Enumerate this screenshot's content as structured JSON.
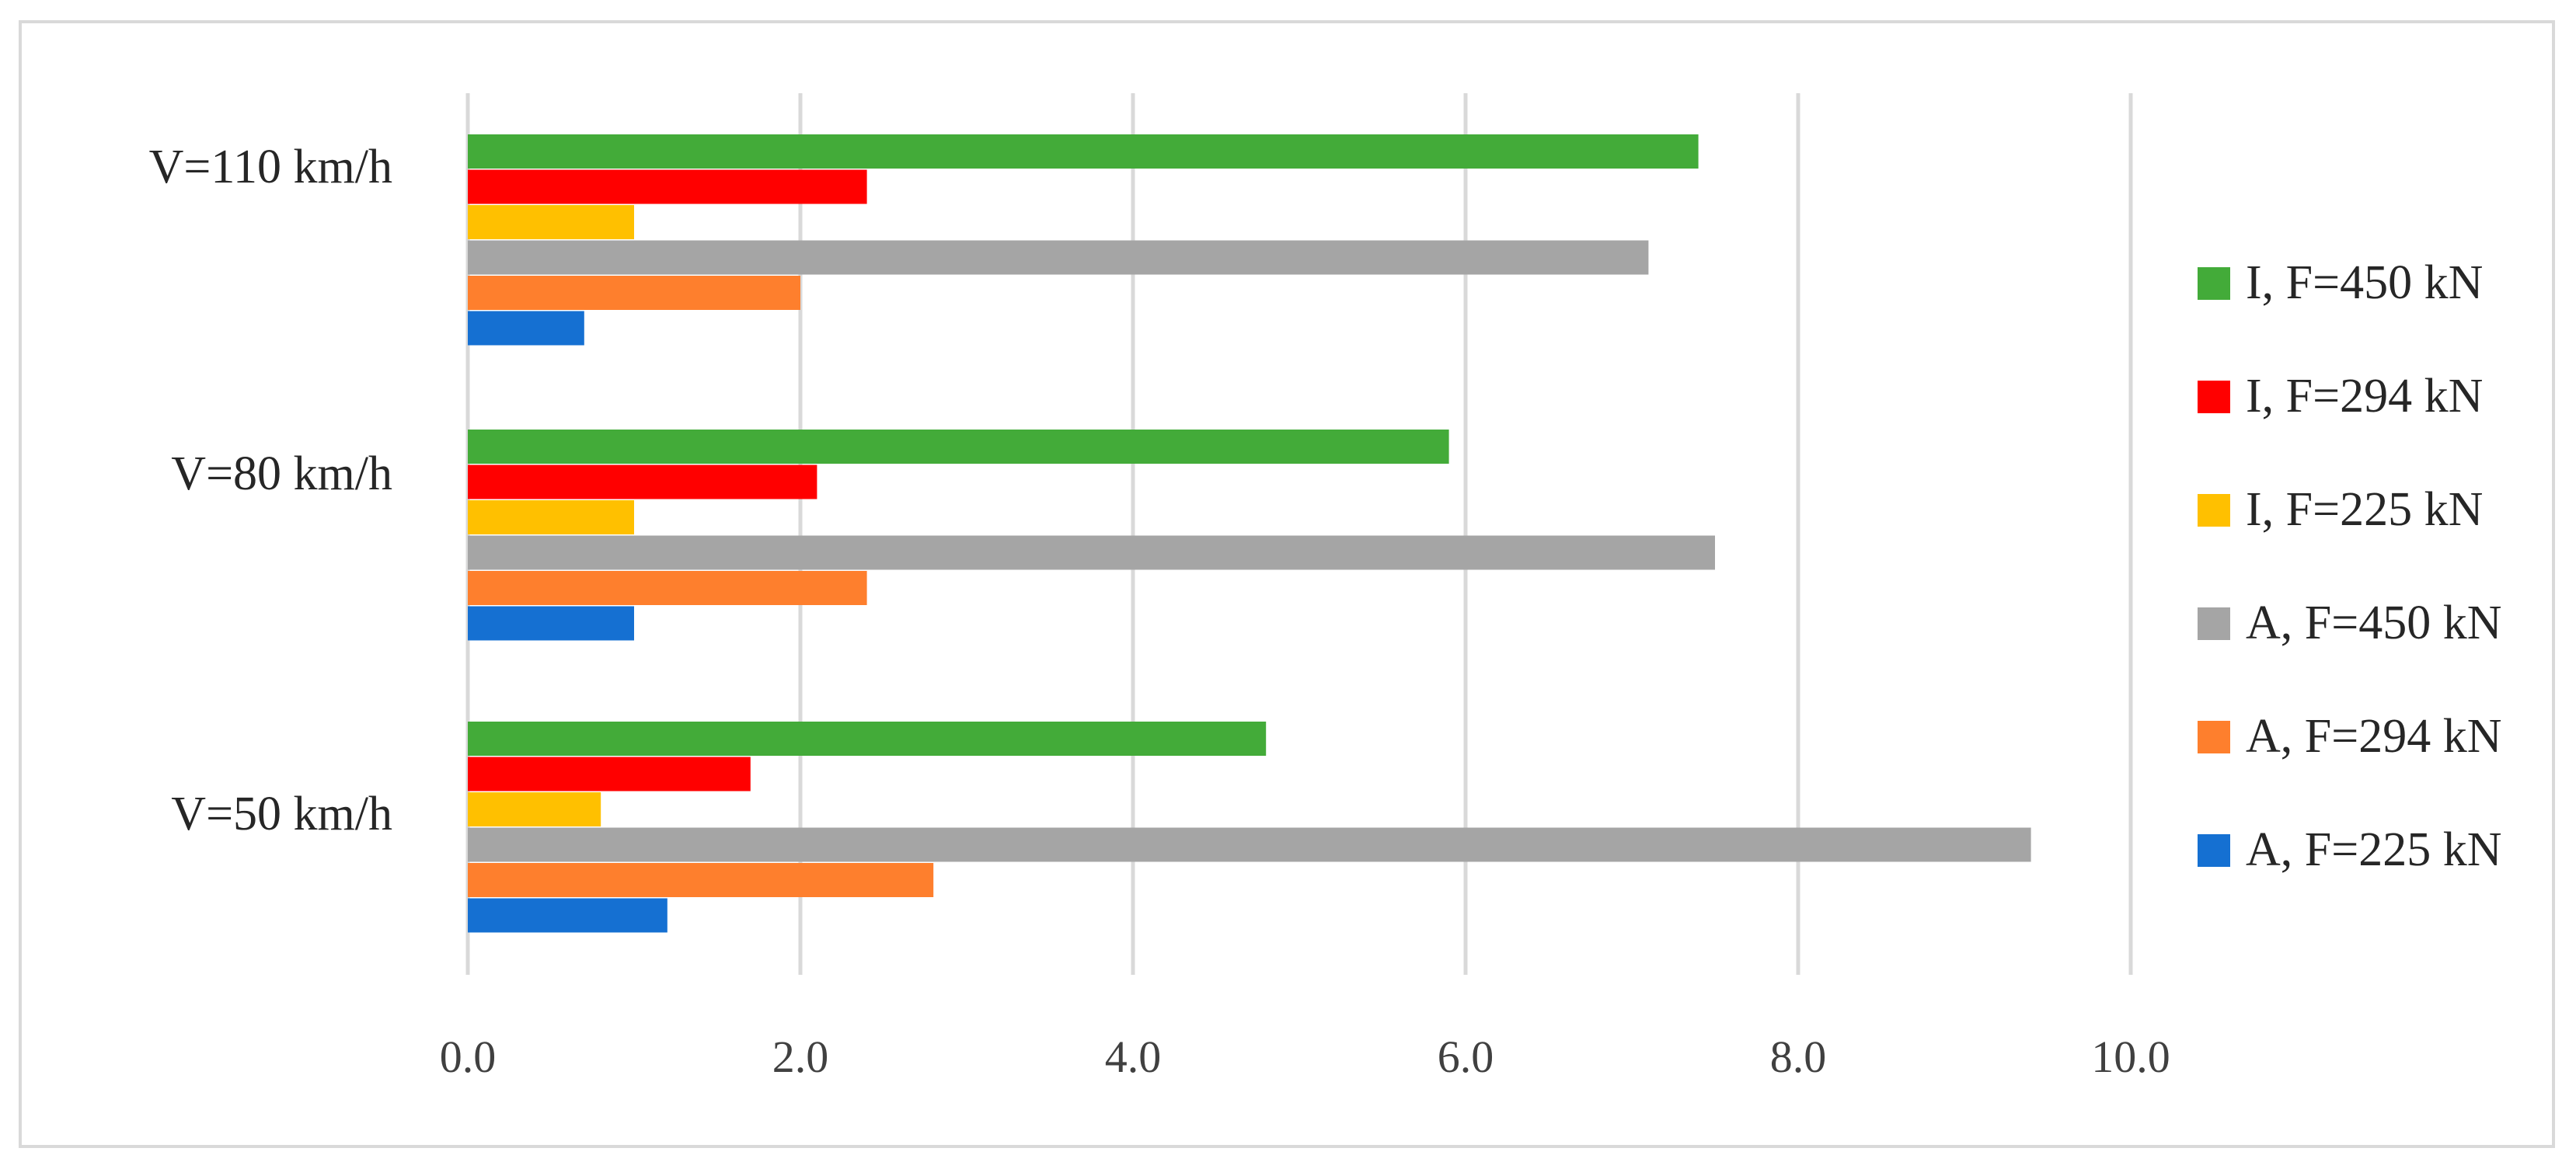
{
  "chart_data": {
    "type": "bar",
    "orientation": "horizontal",
    "title": "",
    "xlabel": "",
    "ylabel": "",
    "categories": [
      "V=110 km/h",
      "V=80 km/h",
      "V=50 km/h"
    ],
    "xlim": [
      0,
      10
    ],
    "x_ticks": [
      "0.0",
      "2.0",
      "4.0",
      "6.0",
      "8.0",
      "10.0"
    ],
    "grid": "vertical",
    "legend_position": "right",
    "series": [
      {
        "name": "I, F=450 kN",
        "color": "#43ab39",
        "values": [
          7.4,
          5.9,
          4.8
        ]
      },
      {
        "name": "I, F=294 kN",
        "color": "#ff0000",
        "values": [
          2.4,
          2.1,
          1.7
        ]
      },
      {
        "name": "I, F=225 kN",
        "color": "#ffc000",
        "values": [
          1.0,
          1.0,
          0.8
        ]
      },
      {
        "name": "A, F=450 kN",
        "color": "#a5a5a5",
        "values": [
          7.1,
          7.5,
          9.4
        ]
      },
      {
        "name": "A, F=294 kN",
        "color": "#fe7f2d",
        "values": [
          2.0,
          2.4,
          2.8
        ]
      },
      {
        "name": "A, F=225 kN",
        "color": "#1570d2",
        "values": [
          0.7,
          1.0,
          1.2
        ]
      }
    ]
  }
}
